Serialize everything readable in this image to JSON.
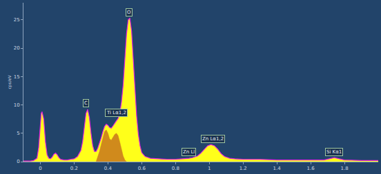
{
  "chart_data": {
    "type": "area",
    "y_label": "cps/eV",
    "xlim": [
      -0.1,
      2.0
    ],
    "xticks": [
      0,
      0.2,
      0.4,
      0.6,
      0.8,
      1,
      1.2,
      1.4,
      1.6,
      1.8
    ],
    "ylim": [
      0,
      28
    ],
    "yticks": [
      0,
      5,
      10,
      15,
      20,
      25
    ],
    "grid": false,
    "series": [
      {
        "color": "#ffff1a",
        "x": [
          -0.1,
          -0.06,
          -0.04,
          -0.02,
          -0.01,
          0.0,
          0.005,
          0.01,
          0.02,
          0.03,
          0.04,
          0.05,
          0.06,
          0.07,
          0.08,
          0.09,
          0.1,
          0.11,
          0.12,
          0.14,
          0.16,
          0.18,
          0.2,
          0.22,
          0.24,
          0.25,
          0.26,
          0.27,
          0.28,
          0.29,
          0.3,
          0.31,
          0.32,
          0.33,
          0.34,
          0.35,
          0.36,
          0.37,
          0.38,
          0.39,
          0.4,
          0.41,
          0.42,
          0.43,
          0.44,
          0.45,
          0.46,
          0.47,
          0.48,
          0.49,
          0.5,
          0.51,
          0.52,
          0.53,
          0.54,
          0.55,
          0.56,
          0.57,
          0.58,
          0.59,
          0.6,
          0.62,
          0.65,
          0.7,
          0.75,
          0.8,
          0.85,
          0.88,
          0.9,
          0.93,
          0.95,
          0.97,
          0.99,
          1.01,
          1.03,
          1.05,
          1.07,
          1.09,
          1.12,
          1.15,
          1.2,
          1.3,
          1.4,
          1.5,
          1.6,
          1.68,
          1.71,
          1.74,
          1.77,
          1.8,
          1.9,
          2.0
        ],
        "values": [
          0.1,
          0.1,
          0.2,
          0.6,
          2.5,
          6.5,
          8.5,
          8.8,
          7.5,
          3.5,
          1.2,
          0.6,
          0.5,
          0.8,
          1.3,
          1.5,
          1.2,
          0.7,
          0.4,
          0.3,
          0.3,
          0.4,
          0.5,
          0.9,
          2.0,
          3.5,
          6.0,
          8.5,
          9.2,
          7.8,
          5.0,
          2.8,
          1.8,
          1.8,
          2.4,
          3.2,
          4.2,
          5.3,
          6.2,
          6.6,
          6.4,
          6.0,
          5.9,
          6.3,
          6.8,
          7.2,
          7.6,
          8.5,
          10.5,
          13.5,
          18,
          22.5,
          25.0,
          25.3,
          23,
          18,
          12.5,
          8,
          4.8,
          2.8,
          1.6,
          0.9,
          0.6,
          0.5,
          0.4,
          0.4,
          0.5,
          0.6,
          0.7,
          1.0,
          1.5,
          2.2,
          2.8,
          3.0,
          2.8,
          2.2,
          1.4,
          0.9,
          0.6,
          0.5,
          0.4,
          0.4,
          0.3,
          0.3,
          0.3,
          0.3,
          0.5,
          0.7,
          0.5,
          0.3,
          0.2,
          0.2
        ]
      },
      {
        "color": "#d08a1c",
        "x": [
          0.33,
          0.34,
          0.35,
          0.36,
          0.37,
          0.38,
          0.39,
          0.4,
          0.41,
          0.42,
          0.43,
          0.44,
          0.45,
          0.46,
          0.47,
          0.48,
          0.49,
          0.5,
          0.51
        ],
        "values": [
          0,
          0.8,
          1.8,
          3.0,
          4.3,
          5.3,
          5.6,
          5.0,
          4.0,
          3.8,
          4.3,
          4.8,
          5.0,
          4.6,
          3.5,
          2.2,
          1.0,
          0.3,
          0
        ]
      }
    ],
    "annotations": [
      {
        "text": "O",
        "x": 0.525,
        "y": 25.6
      },
      {
        "text": "C",
        "x": 0.27,
        "y": 9.6
      },
      {
        "text": "Ti Lα1,2",
        "x": 0.45,
        "y": 7.9
      },
      {
        "text": "Zn Ll",
        "x": 0.88,
        "y": 1.0
      },
      {
        "text": "Zn Lα1,2",
        "x": 1.02,
        "y": 3.3
      },
      {
        "text": "Si Kα1",
        "x": 1.74,
        "y": 1.0
      }
    ]
  }
}
